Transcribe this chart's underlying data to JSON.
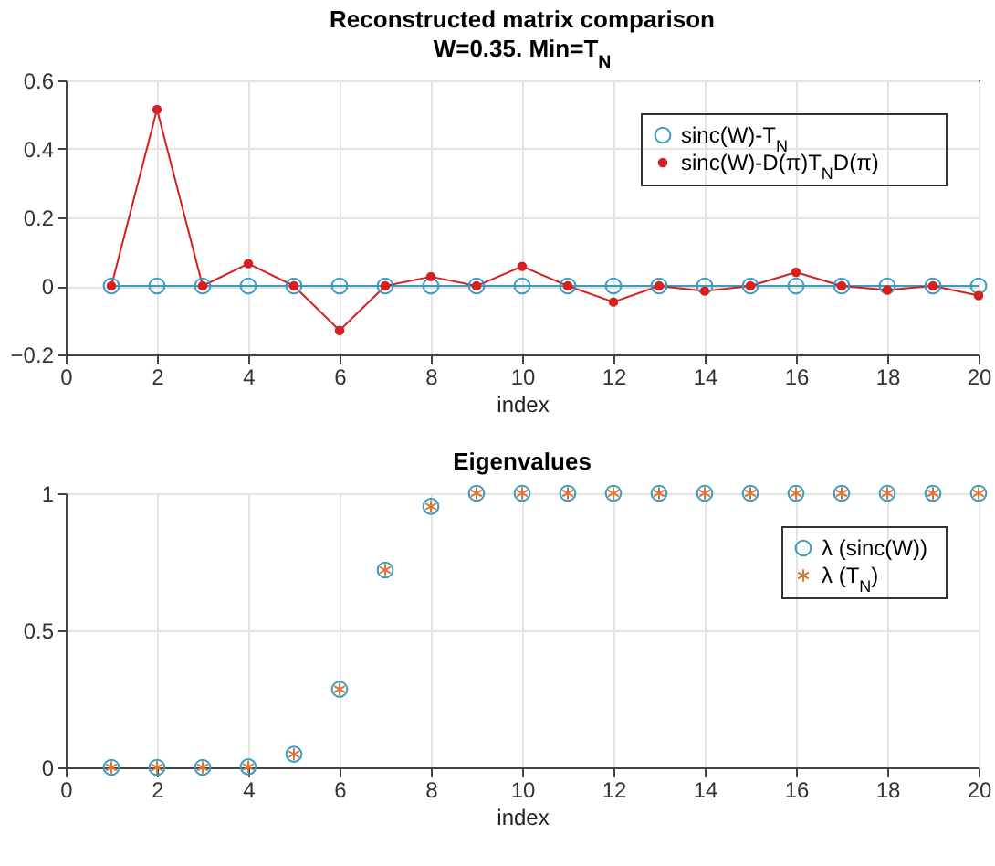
{
  "chart_data": [
    {
      "type": "line",
      "title": "Reconstructed matrix comparison",
      "subtitle": "W=0.35. Min=T$_{N}$",
      "xlabel": "index",
      "x": [
        1,
        2,
        3,
        4,
        5,
        6,
        7,
        8,
        9,
        10,
        11,
        12,
        13,
        14,
        15,
        16,
        17,
        18,
        19,
        20
      ],
      "xlim": [
        0,
        20
      ],
      "xticks": [
        0,
        2,
        4,
        6,
        8,
        10,
        12,
        14,
        16,
        18,
        20
      ],
      "ylim": [
        -0.2,
        0.6
      ],
      "yticks": [
        -0.2,
        0,
        0.2,
        0.4,
        0.6
      ],
      "grid": true,
      "legend": "top right",
      "series": [
        {
          "name": "sinc(W)-T$_{N}$",
          "color": "#3a9cc0",
          "marker": "circle",
          "values": [
            0,
            0,
            0,
            0,
            0,
            0,
            0,
            0,
            0,
            0,
            0,
            0,
            0,
            0,
            0,
            0,
            0,
            0,
            0,
            0
          ]
        },
        {
          "name": "sinc(W)-D(π)T$_{N}$D(π)",
          "color": "#d42020",
          "marker": "circle",
          "values": [
            0,
            0.515,
            0,
            0.065,
            0,
            -0.13,
            0,
            0.027,
            0,
            0.057,
            0,
            -0.047,
            0,
            -0.015,
            0,
            0.04,
            0,
            -0.012,
            0,
            -0.028
          ]
        }
      ]
    },
    {
      "type": "scatter",
      "title": "Eigenvalues",
      "xlabel": "index",
      "x": [
        1,
        2,
        3,
        4,
        5,
        6,
        7,
        8,
        9,
        10,
        11,
        12,
        13,
        14,
        15,
        16,
        17,
        18,
        19,
        20
      ],
      "xlim": [
        0,
        20
      ],
      "xticks": [
        0,
        2,
        4,
        6,
        8,
        10,
        12,
        14,
        16,
        18,
        20
      ],
      "ylim": [
        0,
        1
      ],
      "yticks": [
        0,
        0.5,
        1
      ],
      "grid": true,
      "legend": "top right",
      "series": [
        {
          "name": "λ (sinc(W))",
          "color": "#3a9cc0",
          "marker": "circle",
          "values": [
            0,
            0,
            0,
            0.002,
            0.048,
            0.285,
            0.72,
            0.952,
            1,
            1,
            1,
            1,
            1,
            1,
            1,
            1,
            1,
            1,
            1,
            1
          ]
        },
        {
          "name": "λ (T$_{N}$)",
          "color": "#d9763a",
          "marker": "cross",
          "values": [
            0,
            0,
            0,
            0.002,
            0.048,
            0.285,
            0.72,
            0.952,
            1,
            1,
            1,
            1,
            1,
            1,
            1,
            1,
            1,
            1,
            1,
            1
          ]
        }
      ]
    }
  ]
}
